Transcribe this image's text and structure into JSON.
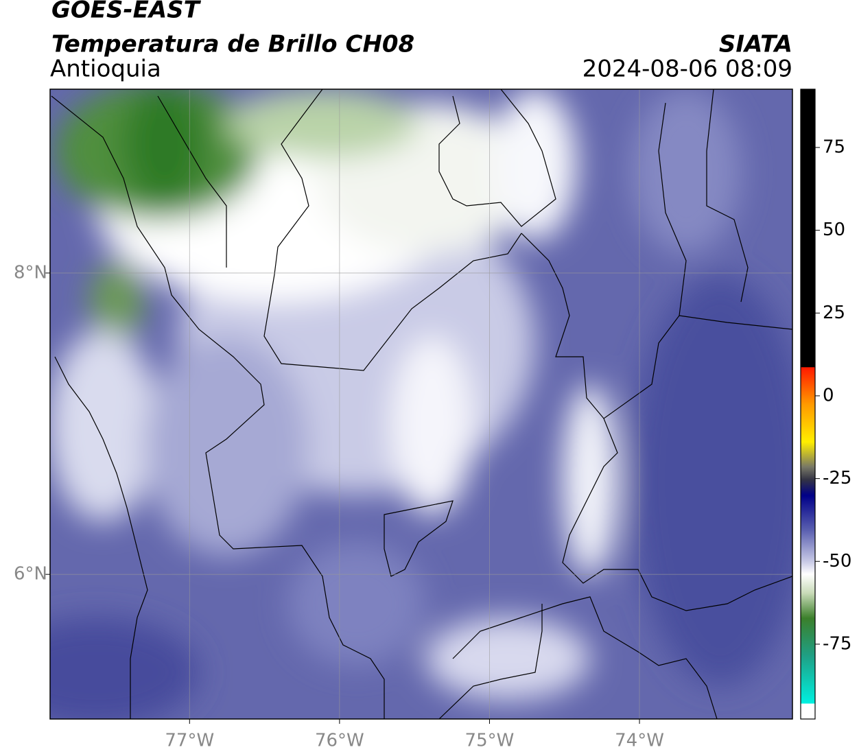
{
  "header": {
    "title": "GOES-EAST",
    "subtitle": "Temperatura de Brillo CH08",
    "region": "Antioquia",
    "source": "SIATA",
    "datetime": "2024-08-06 08:09"
  },
  "map": {
    "xlim": [
      -77.93,
      -72.98
    ],
    "ylim": [
      5.04,
      9.22
    ],
    "xticks": [
      {
        "value": -77,
        "label": "77°W"
      },
      {
        "value": -76,
        "label": "76°W"
      },
      {
        "value": -75,
        "label": "75°W"
      },
      {
        "value": -74,
        "label": "74°W"
      }
    ],
    "yticks": [
      {
        "value": 8,
        "label": "8°N"
      },
      {
        "value": 6,
        "label": "6°N"
      }
    ],
    "grid": true
  },
  "colorbar": {
    "lim": [
      -97.6,
      92.6
    ],
    "ticks": [
      75,
      50,
      25,
      0,
      -25,
      -50,
      -75
    ]
  }
}
